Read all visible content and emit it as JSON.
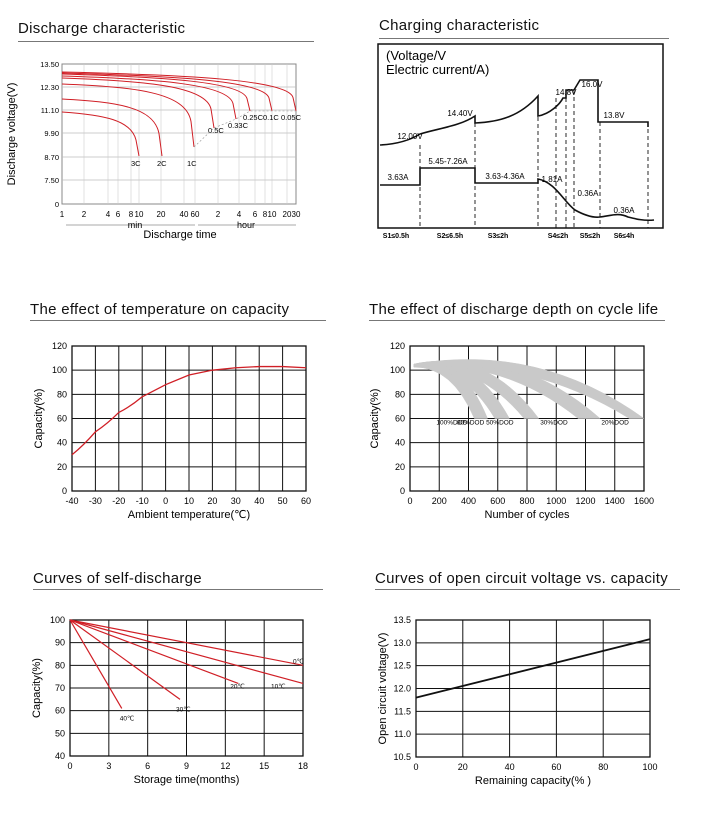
{
  "panels": {
    "discharge": {
      "title": "Discharge characteristic"
    },
    "charging": {
      "title": "Charging characteristic"
    },
    "temperature": {
      "title": "The effect of temperature on capacity"
    },
    "cycle": {
      "title": "The effect of discharge depth on cycle life"
    },
    "selfdischarge": {
      "title": "Curves of self-discharge"
    },
    "ocv": {
      "title": "Curves of open circuit voltage vs. capacity"
    }
  },
  "chart_data": [
    {
      "id": "discharge",
      "type": "line",
      "title": "Discharge characteristic",
      "ylabel": "Discharge voltage(V)",
      "xlabel": "Discharge time",
      "y_ticks": [
        "13.50",
        "12.30",
        "11.10",
        "9.90",
        "8.70",
        "7.50",
        "0"
      ],
      "x_ticks": [
        "1",
        "2",
        "4",
        "6",
        "8",
        "10",
        "20",
        "40",
        "60",
        "2",
        "4",
        "6",
        "8",
        "10",
        "20",
        "30"
      ],
      "x_unit_labels": [
        "min",
        "hour"
      ],
      "series": [
        {
          "name": "3C",
          "end_minutes": 8
        },
        {
          "name": "2C",
          "end_minutes": 14
        },
        {
          "name": "1C",
          "end_minutes": 42
        },
        {
          "name": "0.5C",
          "end_minutes": 110
        },
        {
          "name": "0.33C",
          "end_minutes": 180
        },
        {
          "name": "0.25C",
          "end_minutes": 270
        },
        {
          "name": "0.1C",
          "end_minutes": 570
        },
        {
          "name": "0.05C",
          "end_minutes": 1140
        }
      ]
    },
    {
      "id": "charging",
      "type": "line",
      "title": "Charging characteristic",
      "legend_text": [
        "(Voltage/V",
        "Electric current/A)"
      ],
      "voltage_labels": [
        "12.00V",
        "14.40V",
        "14.8V",
        "16.0V",
        "13.8V"
      ],
      "current_labels": [
        "3.63A",
        "5.45-7.26A",
        "3.63-4.36A",
        "1.81A",
        "0.36A",
        "0.36A"
      ],
      "stages": [
        "S1≤0.5h",
        "S2≤6.5h",
        "S3≤2h",
        "S4≤2h",
        "S5≤2h",
        "S6≤4h"
      ]
    },
    {
      "id": "temperature",
      "type": "line",
      "title": "The effect of temperature on capacity",
      "xlabel": "Ambient temperature(℃)",
      "ylabel": "Capacity(%)",
      "xlim": [
        -40,
        60
      ],
      "ylim": [
        0,
        120
      ],
      "x_ticks": [
        "-40",
        "-30",
        "-20",
        "-10",
        "0",
        "10",
        "20",
        "30",
        "40",
        "50",
        "60"
      ],
      "y_ticks": [
        "0",
        "20",
        "40",
        "60",
        "80",
        "100",
        "120"
      ],
      "series": [
        {
          "name": "capacity",
          "x": [
            -40,
            -30,
            -20,
            -10,
            0,
            10,
            20,
            30,
            40,
            50,
            60
          ],
          "y": [
            30,
            49,
            65,
            78,
            88,
            96,
            100,
            102,
            103,
            103,
            102
          ]
        }
      ]
    },
    {
      "id": "cycle",
      "type": "area",
      "title": "The effect of discharge depth on cycle life",
      "xlabel": "Number of cycles",
      "ylabel": "Capacity(%)",
      "xlim": [
        0,
        1600
      ],
      "ylim": [
        0,
        120
      ],
      "x_ticks": [
        "0",
        "200",
        "400",
        "600",
        "800",
        "1000",
        "1200",
        "1400",
        "1600"
      ],
      "y_ticks": [
        "0",
        "20",
        "40",
        "60",
        "80",
        "100",
        "120"
      ],
      "series": [
        {
          "name": "100%DOD",
          "end_cycles": [
            440,
            530
          ]
        },
        {
          "name": "80%DOD",
          "end_cycles": [
            580,
            680
          ]
        },
        {
          "name": "50%DOD",
          "end_cycles": [
            780,
            880
          ]
        },
        {
          "name": "30%DOD",
          "end_cycles": [
            1150,
            1300
          ]
        },
        {
          "name": "20%DOD",
          "end_cycles": [
            1500,
            1600
          ]
        }
      ]
    },
    {
      "id": "selfdischarge",
      "type": "line",
      "title": "Curves of self-discharge",
      "xlabel": "Storage time(months)",
      "ylabel": "Capacity(%)",
      "xlim": [
        0,
        18
      ],
      "ylim": [
        40,
        100
      ],
      "x_ticks": [
        "0",
        "3",
        "6",
        "9",
        "12",
        "15",
        "18"
      ],
      "y_ticks": [
        "40",
        "50",
        "60",
        "70",
        "80",
        "90",
        "100"
      ],
      "series": [
        {
          "name": "0℃",
          "x": [
            0,
            18
          ],
          "y": [
            100,
            80
          ]
        },
        {
          "name": "10℃",
          "x": [
            0,
            18
          ],
          "y": [
            100,
            72
          ]
        },
        {
          "name": "20℃",
          "x": [
            0,
            13
          ],
          "y": [
            100,
            72
          ]
        },
        {
          "name": "30℃",
          "x": [
            0,
            8.5
          ],
          "y": [
            100,
            65
          ]
        },
        {
          "name": "40℃",
          "x": [
            0,
            4
          ],
          "y": [
            100,
            61
          ]
        }
      ]
    },
    {
      "id": "ocv",
      "type": "line",
      "title": "Curves of open circuit voltage vs. capacity",
      "xlabel": "Remaining capacity(% )",
      "ylabel": "Open circuit voltage(V)",
      "xlim": [
        0,
        100
      ],
      "ylim": [
        10.5,
        13.5
      ],
      "x_ticks": [
        "0",
        "20",
        "40",
        "60",
        "80",
        "100"
      ],
      "y_ticks": [
        "10.5",
        "11.0",
        "11.5",
        "12.0",
        "12.5",
        "13.0",
        "13.5"
      ],
      "series": [
        {
          "name": "ocv",
          "x": [
            0,
            100
          ],
          "y": [
            11.8,
            13.08
          ]
        }
      ]
    }
  ]
}
